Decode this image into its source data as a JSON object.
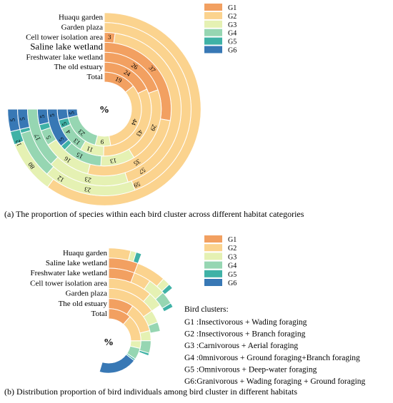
{
  "colors": {
    "G1": "#f2a061",
    "G2": "#fbd38e",
    "G3": "#e5f1b3",
    "G4": "#96d6b2",
    "G5": "#3fb2a6",
    "G6": "#3878b5"
  },
  "chart_data": [
    {
      "type": "radial-stacked-bar",
      "caption": "(a) The proportion of species within each bird cluster across different habitat categories",
      "center_label": "%",
      "groups": [
        "G1",
        "G2",
        "G3",
        "G4",
        "G5",
        "G6"
      ],
      "categories": [
        "Huaqu garden",
        "Garden plaza",
        "Cell tower isolation area",
        "Saline lake wetland",
        "Freshwater lake wetland",
        "The old estuary",
        "Total"
      ],
      "series": [
        {
          "name": "G1",
          "values": [
            0,
            0,
            3,
            37,
            26,
            24,
            19
          ]
        },
        {
          "name": "G2",
          "values": [
            80,
            59,
            57,
            35,
            29,
            43,
            44
          ]
        },
        {
          "name": "G3",
          "values": [
            12,
            23,
            23,
            16,
            13,
            11,
            9
          ]
        },
        {
          "name": "G4",
          "values": [
            0,
            12,
            17,
            5,
            15,
            13,
            23
          ]
        },
        {
          "name": "G5",
          "values": [
            3,
            1,
            0,
            2,
            2,
            4,
            0
          ]
        },
        {
          "name": "G6",
          "values": [
            5,
            5,
            0,
            5,
            15,
            5,
            5
          ]
        }
      ],
      "labels": [
        {
          "text": "80",
          "cat": 0,
          "pos": 86
        },
        {
          "text": "12",
          "cat": 0,
          "pos": 92
        },
        {
          "text": "5",
          "cat": 0,
          "pos": 97.5
        },
        {
          "text": "59",
          "cat": 1,
          "pos": 58
        },
        {
          "text": "23",
          "cat": 1,
          "pos": 71
        },
        {
          "text": "12",
          "cat": 1,
          "pos": 78.5
        },
        {
          "text": "5",
          "cat": 1,
          "pos": 97.5
        },
        {
          "text": "3",
          "cat": 2,
          "pos": 1.5
        },
        {
          "text": "57",
          "cat": 2,
          "pos": 55
        },
        {
          "text": "23",
          "cat": 2,
          "pos": 71.5
        },
        {
          "text": "17",
          "cat": 2,
          "pos": 91.5
        },
        {
          "text": "37",
          "cat": 3,
          "pos": 18.5
        },
        {
          "text": "35",
          "cat": 3,
          "pos": 55
        },
        {
          "text": "16",
          "cat": 3,
          "pos": 80
        },
        {
          "text": "5",
          "cat": 3,
          "pos": 90
        },
        {
          "text": "5",
          "cat": 3,
          "pos": 97.5
        },
        {
          "text": "26",
          "cat": 4,
          "pos": 13
        },
        {
          "text": "29",
          "cat": 4,
          "pos": 41
        },
        {
          "text": "13",
          "cat": 4,
          "pos": 63
        },
        {
          "text": "15",
          "cat": 4,
          "pos": 77
        },
        {
          "text": "5",
          "cat": 4,
          "pos": 87
        },
        {
          "text": "5",
          "cat": 4,
          "pos": 97.5
        },
        {
          "text": "24",
          "cat": 5,
          "pos": 12
        },
        {
          "text": "43",
          "cat": 5,
          "pos": 46
        },
        {
          "text": "11",
          "cat": 5,
          "pos": 74
        },
        {
          "text": "13",
          "cat": 5,
          "pos": 81.5
        },
        {
          "text": "5",
          "cat": 5,
          "pos": 92.5
        },
        {
          "text": "4",
          "cat": 5,
          "pos": 88
        },
        {
          "text": "19",
          "cat": 6,
          "pos": 9.5
        },
        {
          "text": "44",
          "cat": 6,
          "pos": 42
        },
        {
          "text": "9",
          "cat": 6,
          "pos": 68
        },
        {
          "text": "23",
          "cat": 6,
          "pos": 83
        },
        {
          "text": "5",
          "cat": 6,
          "pos": 97.5
        }
      ]
    },
    {
      "type": "radial-stacked-bar",
      "caption": "(b) Distribution proportion of bird individuals among bird cluster in different habitats",
      "center_label": "%",
      "groups": [
        "G1",
        "G2",
        "G3",
        "G4",
        "G5",
        "G6"
      ],
      "categories": [
        "Huaqu garden",
        "Saline lake wetland",
        "Freshwater lake wetland",
        "Cell tower isolation area",
        "Garden plaza",
        "The old estuary",
        "Total"
      ],
      "series": [
        {
          "name": "G1",
          "values": [
            0,
            3,
            3,
            0,
            0,
            5,
            6
          ]
        },
        {
          "name": "G2",
          "values": [
            2,
            3,
            2,
            6,
            8,
            6,
            7
          ]
        },
        {
          "name": "G3",
          "values": [
            0.5,
            0.8,
            2,
            2,
            2,
            2,
            2
          ]
        },
        {
          "name": "G4",
          "values": [
            0,
            0,
            1.5,
            0,
            1.5,
            2.5,
            3
          ]
        },
        {
          "name": "G5",
          "values": [
            0.5,
            0.5,
            0.5,
            0,
            0,
            0.5,
            0.5
          ]
        },
        {
          "name": "G6",
          "values": [
            0,
            0,
            0,
            0,
            0,
            0,
            10
          ]
        }
      ]
    }
  ],
  "legend_a": [
    "G1",
    "G2",
    "G3",
    "G4",
    "G5",
    "G6"
  ],
  "legend_b": [
    "G1",
    "G2",
    "G3",
    "G4",
    "G5",
    "G6"
  ],
  "clusters": {
    "title": "Bird clusters:",
    "items": [
      "G1 :Insectivorous + Wading foraging",
      "G2 :Insectivorous + Branch foraging",
      "G3 :Carnivorous + Aerial foraging",
      "G4 :0mnivorous + Ground foraging+Branch foraging",
      "G5 :Omnivorous + Deep-water foraging",
      "G6:Granivorous + Wading foraging + Ground foraging"
    ]
  }
}
